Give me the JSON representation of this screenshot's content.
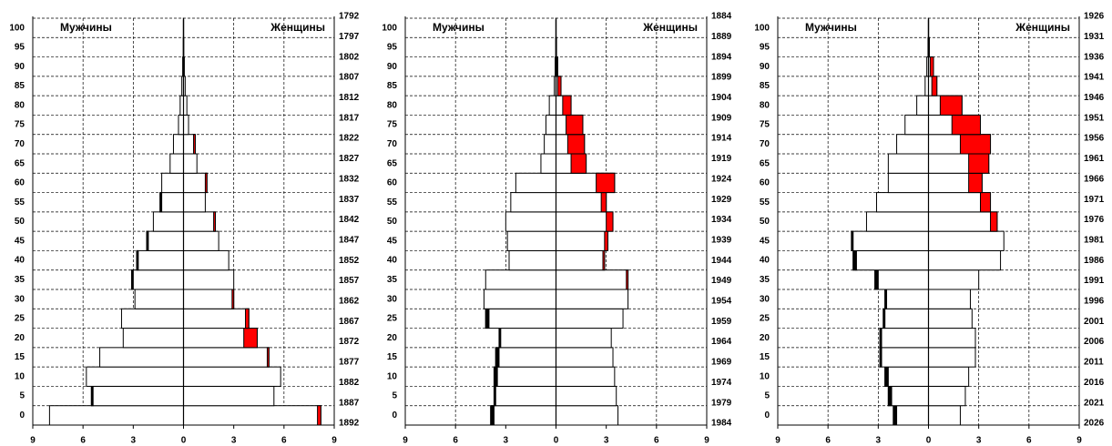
{
  "chart_data": [
    {
      "type": "pyramid",
      "grid": true,
      "female_excess_color": "#ff0000",
      "male_excess_color": "#000000",
      "categories": [
        "0",
        "5",
        "10",
        "15",
        "20",
        "25",
        "30",
        "35",
        "40",
        "45",
        "50",
        "55",
        "60",
        "65",
        "70",
        "75",
        "80",
        "85",
        "90",
        "95",
        "100"
      ],
      "birth_years": [
        1792,
        1797,
        1802,
        1807,
        1812,
        1817,
        1822,
        1827,
        1832,
        1837,
        1842,
        1847,
        1852,
        1857,
        1862,
        1867,
        1872,
        1877,
        1882,
        1887,
        1892
      ],
      "xlim": [
        -9,
        9
      ],
      "xticks": [
        {
          "value": -9,
          "label": "9"
        },
        {
          "value": -6,
          "label": "6"
        },
        {
          "value": -3,
          "label": "3"
        },
        0,
        3,
        6,
        9
      ],
      "series": [
        {
          "name": "Мужчины",
          "color": "#ffffff",
          "values": [
            8.0,
            5.5,
            5.8,
            5.0,
            3.6,
            3.7,
            2.9,
            3.1,
            2.8,
            2.2,
            1.8,
            1.4,
            1.3,
            0.8,
            0.6,
            0.3,
            0.2,
            0.1,
            0.05,
            0.02,
            0.01
          ]
        },
        {
          "name": "Женщины",
          "color": "#ffffff",
          "values": [
            8.2,
            5.4,
            5.8,
            5.1,
            4.4,
            3.9,
            3.0,
            3.0,
            2.7,
            2.1,
            1.9,
            1.3,
            1.4,
            0.8,
            0.7,
            0.3,
            0.2,
            0.1,
            0.05,
            0.02,
            0.01
          ]
        }
      ]
    },
    {
      "type": "pyramid",
      "grid": true,
      "female_excess_color": "#ff0000",
      "male_excess_color": "#000000",
      "categories": [
        "0",
        "5",
        "10",
        "15",
        "20",
        "25",
        "30",
        "35",
        "40",
        "45",
        "50",
        "55",
        "60",
        "65",
        "70",
        "75",
        "80",
        "85",
        "90",
        "95",
        "100"
      ],
      "birth_years": [
        1884,
        1889,
        1894,
        1899,
        1904,
        1909,
        1914,
        1919,
        1924,
        1929,
        1934,
        1939,
        1944,
        1949,
        1954,
        1959,
        1964,
        1969,
        1974,
        1979,
        1984
      ],
      "xlim": [
        -9,
        9
      ],
      "xticks": [
        {
          "value": -9,
          "label": "9"
        },
        {
          "value": -6,
          "label": "6"
        },
        {
          "value": -3,
          "label": "3"
        },
        0,
        3,
        6,
        9
      ],
      "series": [
        {
          "name": "Мужчины",
          "color": "#ffffff",
          "values": [
            3.9,
            3.7,
            3.7,
            3.6,
            3.4,
            4.2,
            4.3,
            4.2,
            2.8,
            2.9,
            3.0,
            2.7,
            2.4,
            0.9,
            0.7,
            0.6,
            0.4,
            0.1,
            0.05,
            0.02,
            0.01
          ]
        },
        {
          "name": "Женщины",
          "color": "#ffffff",
          "values": [
            3.7,
            3.6,
            3.5,
            3.4,
            3.3,
            4.0,
            4.3,
            4.3,
            2.9,
            3.1,
            3.4,
            3.0,
            3.5,
            1.8,
            1.7,
            1.6,
            0.9,
            0.3,
            0.1,
            0.03,
            0.01
          ]
        }
      ]
    },
    {
      "type": "pyramid",
      "grid": true,
      "female_excess_color": "#ff0000",
      "male_excess_color": "#000000",
      "categories": [
        "0",
        "5",
        "10",
        "15",
        "20",
        "25",
        "30",
        "35",
        "40",
        "45",
        "50",
        "55",
        "60",
        "65",
        "70",
        "75",
        "80",
        "85",
        "90",
        "95",
        "100"
      ],
      "birth_years": [
        1926,
        1931,
        1936,
        1941,
        1946,
        1951,
        1956,
        1961,
        1966,
        1971,
        1976,
        1981,
        1986,
        1991,
        1996,
        2001,
        2006,
        2011,
        2016,
        2021,
        2026
      ],
      "xlim": [
        -9,
        9
      ],
      "xticks": [
        {
          "value": -9,
          "label": "9"
        },
        {
          "value": -6,
          "label": "6"
        },
        {
          "value": -3,
          "label": "3"
        },
        0,
        3,
        6,
        9
      ],
      "series": [
        {
          "name": "Мужчины",
          "color": "#ffffff",
          "values": [
            2.1,
            2.4,
            2.6,
            2.9,
            2.9,
            2.7,
            2.6,
            3.2,
            4.5,
            4.6,
            3.7,
            3.1,
            2.4,
            2.4,
            1.9,
            1.4,
            0.7,
            0.2,
            0.1,
            0.03,
            0.01
          ]
        },
        {
          "name": "Женщины",
          "color": "#ffffff",
          "values": [
            1.9,
            2.2,
            2.4,
            2.8,
            2.8,
            2.6,
            2.5,
            3.0,
            4.3,
            4.5,
            4.1,
            3.7,
            3.2,
            3.6,
            3.7,
            3.1,
            2.0,
            0.5,
            0.3,
            0.05,
            0.01
          ]
        }
      ]
    }
  ]
}
